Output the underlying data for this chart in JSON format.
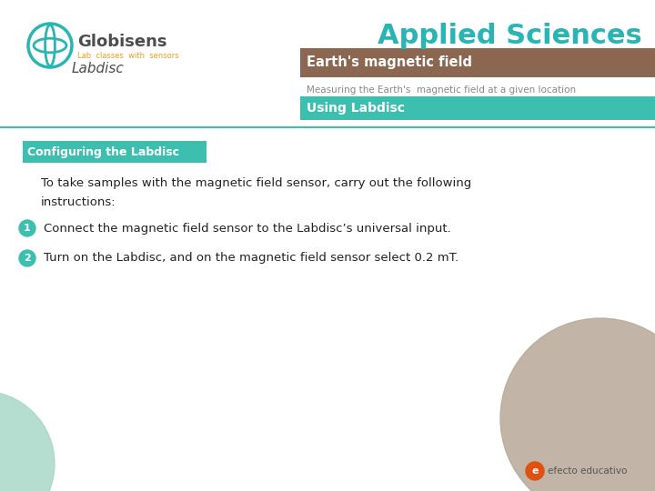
{
  "bg_color": "#ffffff",
  "title_text": "Applied Sciences",
  "title_color": "#2ab5b5",
  "brown_bar_color": "#8B6650",
  "brown_bar_text": "Earth's magnetic field",
  "subtitle_text": "Measuring the Earth's  magnetic field at a given location",
  "teal_bar_color": "#3dbfb0",
  "teal_bar_text": "Using Labdisc",
  "section_box_color": "#3dbfb0",
  "section_box_text": "Configuring the Labdisc",
  "globisens_color": "#4d4d4d",
  "globisens_orange": "#e8a020",
  "globisens_teal": "#2ab5b5",
  "labdisc_color": "#4d4d4d",
  "intro_text": "To take samples with the magnetic field sensor, carry out the following\ninstructions:",
  "item1": "Connect the magnetic field sensor to the Labdisc’s universal input.",
  "item2": "Turn on the Labdisc, and on the magnetic field sensor select 0.2 mT.",
  "circle_color": "#3dbfb0",
  "circle_num_color": "#ffffff",
  "bottom_left_circle_color": "#a8d8c8",
  "bottom_right_circle_color": "#b8a898",
  "efecto_text": "efecto educativo",
  "efecto_color": "#e05010",
  "separator_color": "#3dbfb0"
}
